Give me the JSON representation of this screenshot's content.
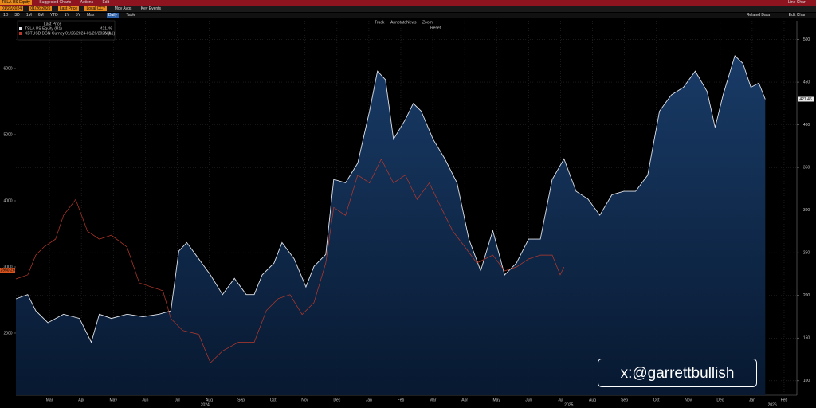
{
  "toolbar": {
    "security": "TSLA US Equity",
    "menus": [
      "Suggested Charts",
      "Actions",
      "Edit"
    ],
    "chart_kind": "Line Chart",
    "fields": [
      "01/26/2024",
      "01/26/2026",
      "Last Price",
      "Local CCY"
    ],
    "toggles": [
      "Mov Avgs",
      "Key Events"
    ],
    "periods": [
      "1D",
      "3D",
      "1M",
      "6M",
      "YTD",
      "1Y",
      "5Y",
      "Max"
    ],
    "frequency": "Daily",
    "view": "Table",
    "right_buttons": [
      "Related Data",
      "Edit Chart"
    ],
    "tools": [
      "Track",
      "Annotate",
      "News",
      "Zoom"
    ],
    "reset": "Reset"
  },
  "chart_data": {
    "type": "line",
    "legend_title": "Last Price",
    "legend_values": [
      "421.46",
      "N.A."
    ],
    "last_tags": [
      "421.46",
      "2950.26"
    ],
    "xlim": [
      0.95,
      25.4
    ],
    "xticks": [
      {
        "value": 2,
        "label": "Mar"
      },
      {
        "value": 3,
        "label": "Apr"
      },
      {
        "value": 4,
        "label": "May"
      },
      {
        "value": 5,
        "label": "Jun"
      },
      {
        "value": 6,
        "label": "Jul"
      },
      {
        "value": 7,
        "label": "Aug"
      },
      {
        "value": 8,
        "label": "Sep"
      },
      {
        "value": 9,
        "label": "Oct"
      },
      {
        "value": 10,
        "label": "Nov"
      },
      {
        "value": 11,
        "label": "Dec"
      },
      {
        "value": 12,
        "label": "Jan"
      },
      {
        "value": 13,
        "label": "Feb"
      },
      {
        "value": 14,
        "label": "Mar"
      },
      {
        "value": 15,
        "label": "Apr"
      },
      {
        "value": 16,
        "label": "May"
      },
      {
        "value": 17,
        "label": "Jun"
      },
      {
        "value": 18,
        "label": "Jul"
      },
      {
        "value": 19,
        "label": "Aug"
      },
      {
        "value": 20,
        "label": "Sep"
      },
      {
        "value": 21,
        "label": "Oct"
      },
      {
        "value": 22,
        "label": "Nov"
      },
      {
        "value": 23,
        "label": "Dec"
      },
      {
        "value": 24,
        "label": "Jan"
      },
      {
        "value": 25,
        "label": "Feb"
      }
    ],
    "years": [
      {
        "value": 6.87,
        "label": "2024"
      },
      {
        "value": 18.26,
        "label": "2025"
      },
      {
        "value": 24.63,
        "label": "2026"
      }
    ],
    "ylim": [
      1060,
      6723
    ],
    "yticks": [
      2000,
      3000,
      4000,
      5000,
      6000
    ],
    "y2lim": [
      83,
      522
    ],
    "y2ticks": [
      100,
      150,
      200,
      250,
      300,
      350,
      400,
      450,
      500
    ],
    "grid": true,
    "series": [
      {
        "name": "TSLA US Equity (R1)",
        "color": "#dfe3ea",
        "fill": "#0f2c50",
        "axis": "y2",
        "x": [
          0.95,
          1.32,
          1.57,
          1.95,
          2.44,
          2.94,
          3.31,
          3.56,
          3.94,
          4.43,
          4.93,
          5.43,
          5.8,
          6.05,
          6.3,
          6.67,
          7.04,
          7.42,
          7.79,
          8.16,
          8.41,
          8.66,
          9.03,
          9.28,
          9.66,
          10.03,
          10.28,
          10.65,
          10.9,
          11.27,
          11.65,
          12.02,
          12.27,
          12.52,
          12.77,
          13.14,
          13.39,
          13.64,
          14.01,
          14.38,
          14.76,
          15.13,
          15.5,
          15.88,
          16.25,
          16.62,
          17.0,
          17.37,
          17.74,
          18.11,
          18.49,
          18.86,
          19.23,
          19.61,
          19.98,
          20.35,
          20.73,
          21.1,
          21.47,
          21.85,
          22.22,
          22.59,
          22.84,
          23.09,
          23.46,
          23.71,
          23.96,
          24.21,
          24.41
        ],
        "values": [
          196,
          201,
          182,
          168,
          178,
          173,
          145,
          178,
          173,
          178,
          175,
          178,
          182,
          252,
          262,
          243,
          224,
          201,
          220,
          201,
          201,
          224,
          238,
          262,
          243,
          210,
          234,
          248,
          336,
          332,
          355,
          416,
          463,
          453,
          383,
          406,
          425,
          416,
          383,
          360,
          332,
          266,
          229,
          276,
          224,
          238,
          266,
          266,
          336,
          360,
          322,
          313,
          294,
          318,
          322,
          322,
          341,
          416,
          435,
          444,
          463,
          439,
          397,
          435,
          481,
          472,
          444,
          449,
          430
        ]
      },
      {
        "name": "XBTUSD BGN Curncy 01/26/2024-01/26/2026 (L1)",
        "color": "#b8392c",
        "axis": "y",
        "x": [
          0.95,
          1.32,
          1.57,
          1.82,
          2.19,
          2.44,
          2.82,
          3.19,
          3.56,
          3.94,
          4.43,
          4.81,
          5.18,
          5.55,
          5.8,
          6.17,
          6.67,
          7.04,
          7.42,
          7.91,
          8.41,
          8.79,
          9.16,
          9.53,
          9.91,
          10.28,
          10.65,
          10.9,
          11.27,
          11.65,
          12.02,
          12.39,
          12.77,
          13.14,
          13.51,
          13.89,
          14.26,
          14.63,
          15.01,
          15.38,
          15.88,
          16.25,
          16.62,
          17.0,
          17.37,
          17.74,
          17.99,
          18.11
        ],
        "values": [
          2819,
          2880,
          3180,
          3300,
          3420,
          3780,
          4020,
          3540,
          3420,
          3480,
          3300,
          2760,
          2700,
          2640,
          2220,
          2040,
          1980,
          1550,
          1730,
          1860,
          1860,
          2340,
          2520,
          2580,
          2280,
          2460,
          3060,
          3900,
          3780,
          4390,
          4270,
          4630,
          4270,
          4390,
          4020,
          4270,
          3900,
          3540,
          3300,
          3060,
          3180,
          2940,
          3000,
          3120,
          3180,
          3180,
          2880,
          3000
        ]
      }
    ]
  },
  "watermark": "x:@garrettbullish"
}
